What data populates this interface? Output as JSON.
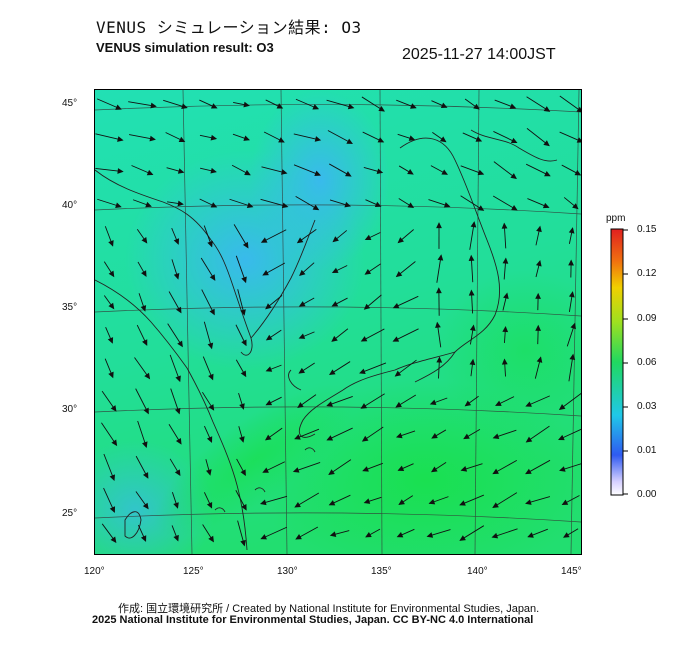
{
  "header": {
    "title_jp": "VENUS シミュレーション結果: O3",
    "title_en": "VENUS simulation result: O3",
    "timestamp": "2025-11-27 14:00JST"
  },
  "map": {
    "lat_labels": [
      "45°",
      "40°",
      "35°",
      "30°",
      "25°"
    ],
    "lon_labels": [
      "120°",
      "125°",
      "130°",
      "135°",
      "140°",
      "145°"
    ],
    "field_colors": {
      "background_green": "#1fd98a",
      "low_blue": "#3ab8f0",
      "mid_cyan": "#25e6c8",
      "high_green": "#22e05a",
      "arrow": "#111111",
      "grid": "#333333"
    }
  },
  "colorbar": {
    "title": "ppm",
    "ticks": [
      "0.15",
      "0.12",
      "0.09",
      "0.06",
      "0.03",
      "0.01",
      "0.00"
    ]
  },
  "footer": {
    "credit_jp": "作成: 国立環境研究所 / Created by National Institute for Environmental Studies, Japan.",
    "credit_en": "2025 National Institute for Environmental Studies, Japan. CC BY-NC 4.0 International"
  }
}
